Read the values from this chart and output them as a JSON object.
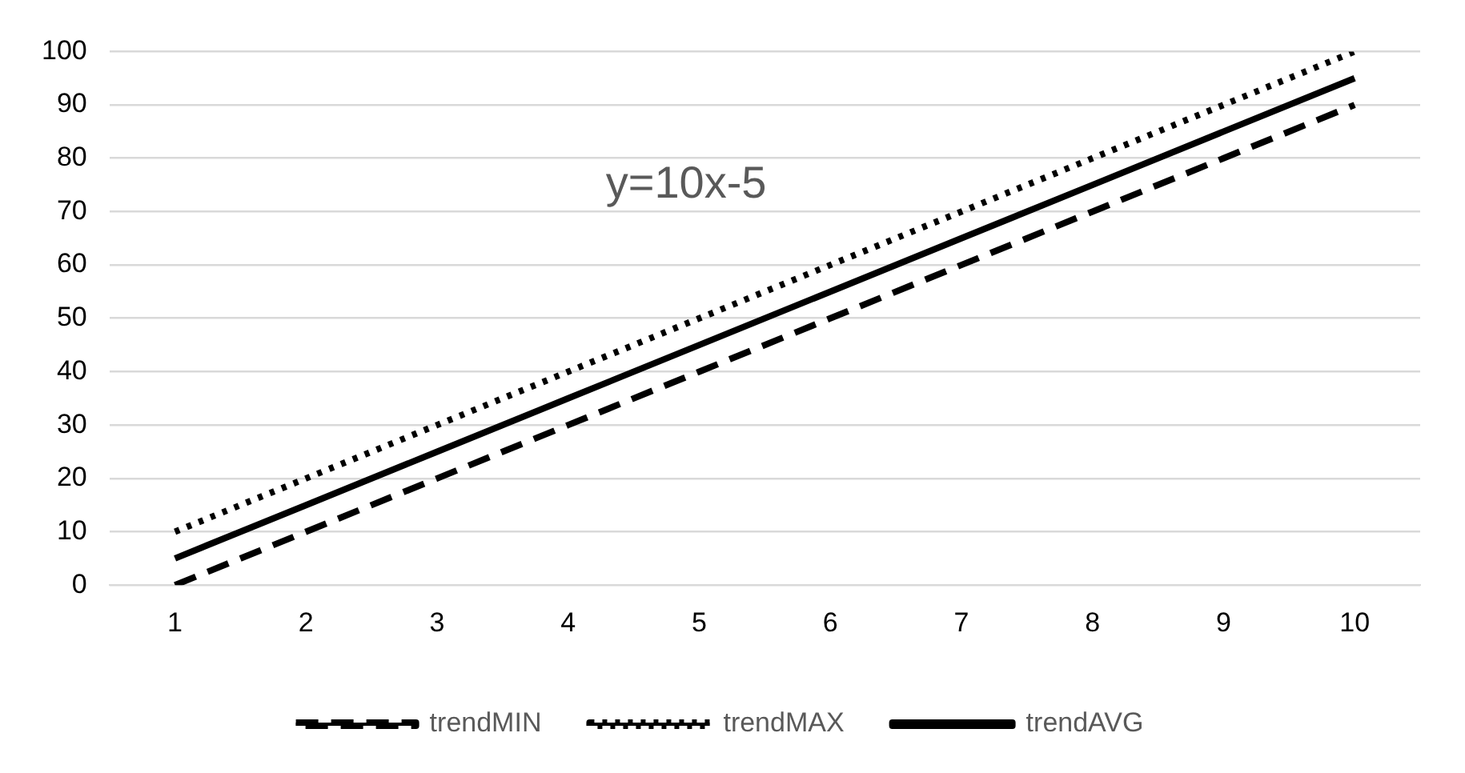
{
  "chart_data": {
    "type": "line",
    "categories": [
      "1",
      "2",
      "3",
      "4",
      "5",
      "6",
      "7",
      "8",
      "9",
      "10"
    ],
    "series": [
      {
        "name": "trendMIN",
        "color": "#000000",
        "line_style": "dashed",
        "values": [
          0,
          10,
          20,
          30,
          40,
          50,
          60,
          70,
          80,
          90
        ]
      },
      {
        "name": "trendMAX",
        "color": "#000000",
        "line_style": "dotted",
        "values": [
          10,
          20,
          30,
          40,
          50,
          60,
          70,
          80,
          90,
          100
        ]
      },
      {
        "name": "trendAVG",
        "color": "#000000",
        "line_style": "solid",
        "values": [
          5,
          15,
          25,
          35,
          45,
          55,
          65,
          75,
          85,
          95
        ]
      }
    ],
    "ylim": [
      0,
      100
    ],
    "yticks": [
      0,
      10,
      20,
      30,
      40,
      50,
      60,
      70,
      80,
      90,
      100
    ],
    "grid": "y",
    "legend": "bottom",
    "marker": "none",
    "annotations": [
      "y=10x-5"
    ]
  }
}
